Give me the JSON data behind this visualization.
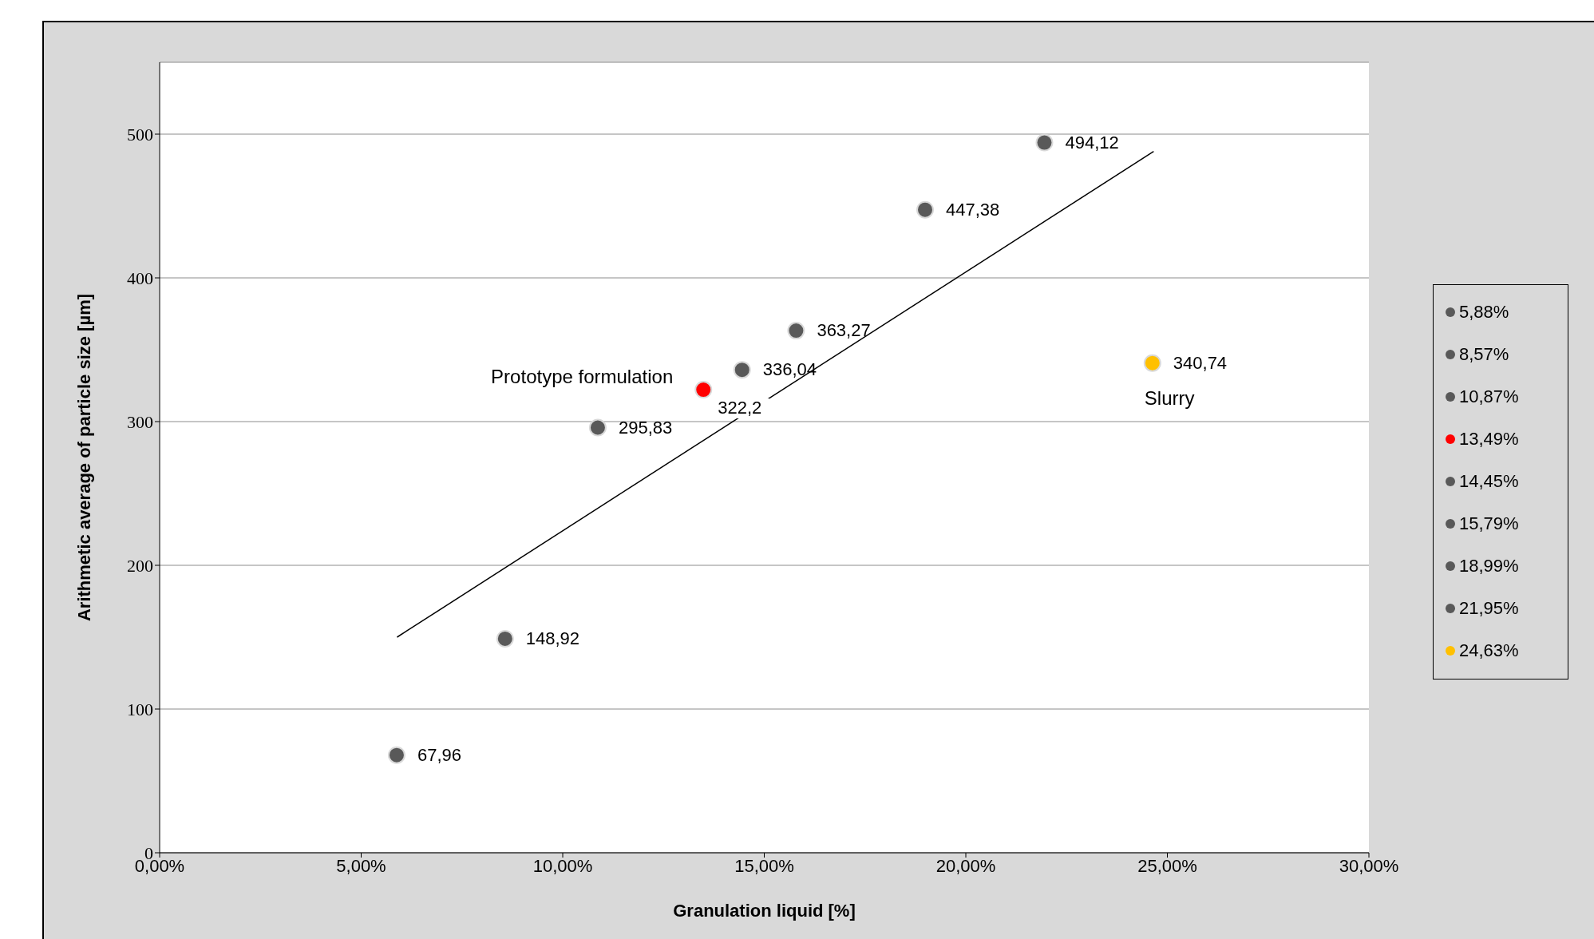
{
  "chart_data": {
    "type": "scatter",
    "xlabel": "Granulation liquid [%]",
    "ylabel": "Arithmetic average of particle size [µm]",
    "xlim": [
      0,
      30
    ],
    "xticks": [
      {
        "value": 0,
        "label": "0,00%"
      },
      {
        "value": 5,
        "label": "5,00%"
      },
      {
        "value": 10,
        "label": "10,00%"
      },
      {
        "value": 15,
        "label": "15,00%"
      },
      {
        "value": 20,
        "label": "20,00%"
      },
      {
        "value": 25,
        "label": "25,00%"
      },
      {
        "value": 30,
        "label": "30,00%"
      }
    ],
    "ylim": [
      0,
      550
    ],
    "yticks": [
      0,
      100,
      200,
      300,
      400,
      500
    ],
    "grid": "y",
    "legend": "right",
    "marker": "circle",
    "series": [
      {
        "name": "5,88%",
        "color": "#595959",
        "x": [
          5.88
        ],
        "values": [
          67.96
        ],
        "value_labels": [
          "67,96"
        ]
      },
      {
        "name": "8,57%",
        "color": "#595959",
        "x": [
          8.57
        ],
        "values": [
          148.92
        ],
        "value_labels": [
          "148,92"
        ]
      },
      {
        "name": "10,87%",
        "color": "#595959",
        "x": [
          10.87
        ],
        "values": [
          295.83
        ],
        "value_labels": [
          "295,83"
        ]
      },
      {
        "name": "13,49%",
        "color": "#ff0000",
        "x": [
          13.49
        ],
        "values": [
          322.2
        ],
        "value_labels": [
          "322,2"
        ]
      },
      {
        "name": "14,45%",
        "color": "#595959",
        "x": [
          14.45
        ],
        "values": [
          336.04
        ],
        "value_labels": [
          "336,04"
        ]
      },
      {
        "name": "15,79%",
        "color": "#595959",
        "x": [
          15.79
        ],
        "values": [
          363.27
        ],
        "value_labels": [
          "363,27"
        ]
      },
      {
        "name": "18,99%",
        "color": "#595959",
        "x": [
          18.99
        ],
        "values": [
          447.38
        ],
        "value_labels": [
          "447,38"
        ]
      },
      {
        "name": "21,95%",
        "color": "#595959",
        "x": [
          21.95
        ],
        "values": [
          494.12
        ],
        "value_labels": [
          "494,12"
        ]
      },
      {
        "name": "24,63%",
        "color": "#ffc000",
        "x": [
          24.63
        ],
        "values": [
          340.74
        ],
        "value_labels": [
          "340,74"
        ]
      },
      {
        "type": "line",
        "marker": "none",
        "color": "#000000",
        "x": [
          5.89,
          24.66
        ],
        "values": [
          150,
          488
        ]
      }
    ],
    "annotations": [
      {
        "text": "Prototype formulation",
        "x": 13.49,
        "y": 322.2
      },
      {
        "text": "Slurry",
        "x": 24.63,
        "y": 340.74
      }
    ]
  }
}
